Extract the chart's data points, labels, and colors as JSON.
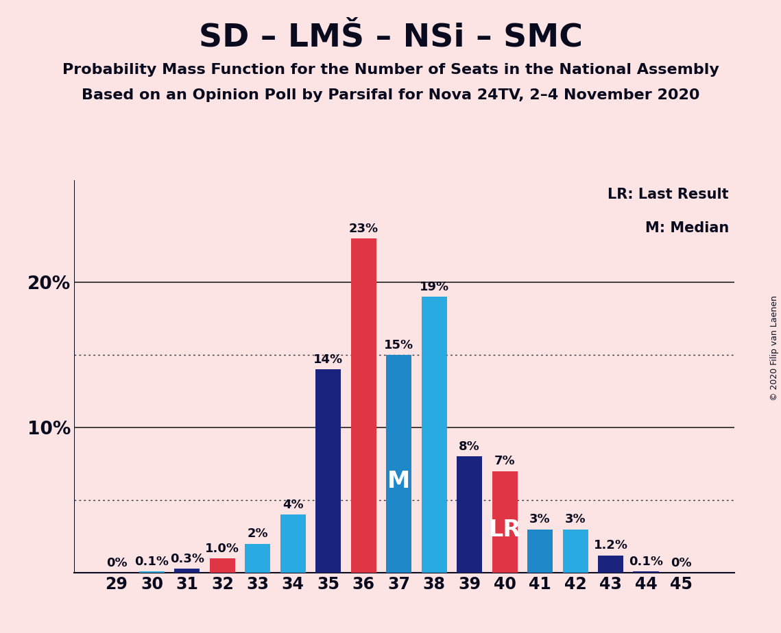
{
  "title": "SD – LMŠ – NSi – SMC",
  "subtitle1": "Probability Mass Function for the Number of Seats in the National Assembly",
  "subtitle2": "Based on an Opinion Poll by Parsifal for Nova 24TV, 2–4 November 2020",
  "copyright": "© 2020 Filip van Laenen",
  "legend_lr": "LR: Last Result",
  "legend_m": "M: Median",
  "seats": [
    29,
    30,
    31,
    32,
    33,
    34,
    35,
    36,
    37,
    38,
    39,
    40,
    41,
    42,
    43,
    44,
    45
  ],
  "values": [
    0.0,
    0.1,
    0.3,
    1.0,
    2.0,
    4.0,
    14.0,
    23.0,
    15.0,
    19.0,
    8.0,
    7.0,
    3.0,
    3.0,
    1.2,
    0.1,
    0.0
  ],
  "labels": [
    "0%",
    "0.1%",
    "0.3%",
    "1.0%",
    "2%",
    "4%",
    "14%",
    "23%",
    "15%",
    "19%",
    "8%",
    "7%",
    "3%",
    "3%",
    "1.2%",
    "0.1%",
    "0%"
  ],
  "bar_colors": [
    "#29abe2",
    "#29abe2",
    "#1a237e",
    "#e03545",
    "#29abe2",
    "#29abe2",
    "#1a237e",
    "#e03545",
    "#1e88c8",
    "#29abe2",
    "#1a237e",
    "#e03545",
    "#1e88c8",
    "#29abe2",
    "#1a237e",
    "#1a237e",
    "#1a237e"
  ],
  "median_seat": 37,
  "lr_seat": 40,
  "background_color": "#fce4e4",
  "ylim_max": 27,
  "xlim_min": 27.8,
  "xlim_max": 46.5,
  "bar_width": 0.72,
  "label_fontsize": 13,
  "xtick_fontsize": 17,
  "ytick_fontsize": 19,
  "title_fontsize": 34,
  "subtitle_fontsize": 16,
  "legend_fontsize": 15,
  "copyright_fontsize": 9,
  "m_label_fontsize": 24,
  "lr_label_fontsize": 24
}
